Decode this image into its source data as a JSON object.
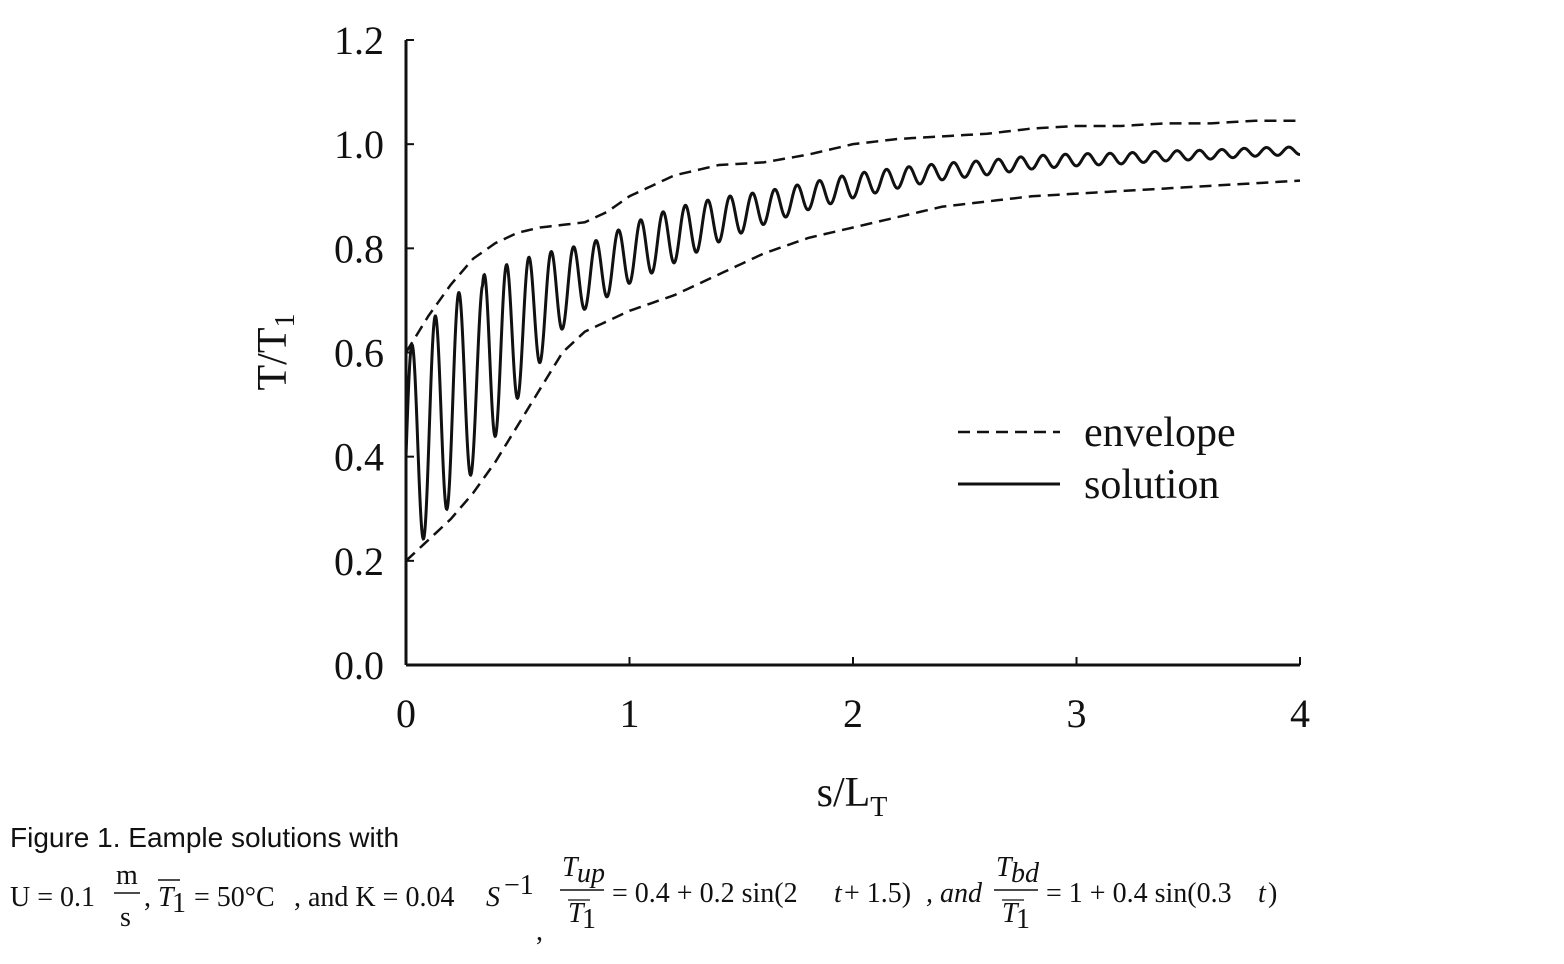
{
  "chart_data": {
    "type": "line",
    "xlabel": "s/L",
    "xlabel_sub": "T",
    "ylabel": "T/T",
    "ylabel_sub": "1",
    "xlim": [
      0,
      4
    ],
    "ylim": [
      0,
      1.2
    ],
    "xticks": [
      "0",
      "1",
      "2",
      "3",
      "4"
    ],
    "yticks": [
      "0.0",
      "0.2",
      "0.4",
      "0.6",
      "0.8",
      "1.0",
      "1.2"
    ],
    "grid": false,
    "legend_position": "right-middle",
    "series": [
      {
        "name": "envelope",
        "style": "dashed",
        "x": [
          0,
          0.1,
          0.2,
          0.3,
          0.4,
          0.5,
          0.6,
          0.7,
          0.8,
          0.9,
          1.0,
          1.2,
          1.4,
          1.6,
          1.8,
          2.0,
          2.2,
          2.4,
          2.6,
          2.8,
          3.0,
          3.2,
          3.4,
          3.6,
          3.8,
          4.0
        ],
        "y": [
          0.6,
          0.67,
          0.73,
          0.78,
          0.81,
          0.83,
          0.84,
          0.845,
          0.85,
          0.87,
          0.9,
          0.94,
          0.96,
          0.965,
          0.98,
          1.0,
          1.01,
          1.015,
          1.02,
          1.03,
          1.035,
          1.035,
          1.04,
          1.04,
          1.045,
          1.045
        ]
      },
      {
        "name": "envelope-lower",
        "style": "dashed",
        "x": [
          0,
          0.1,
          0.2,
          0.3,
          0.4,
          0.5,
          0.6,
          0.7,
          0.8,
          0.9,
          1.0,
          1.2,
          1.4,
          1.6,
          1.8,
          2.0,
          2.2,
          2.4,
          2.6,
          2.8,
          3.0,
          3.2,
          3.4,
          3.6,
          3.8,
          4.0
        ],
        "y": [
          0.2,
          0.24,
          0.28,
          0.33,
          0.39,
          0.46,
          0.53,
          0.6,
          0.64,
          0.66,
          0.68,
          0.71,
          0.75,
          0.79,
          0.82,
          0.84,
          0.86,
          0.88,
          0.89,
          0.9,
          0.905,
          0.91,
          0.915,
          0.92,
          0.925,
          0.93
        ]
      },
      {
        "name": "solution",
        "style": "solid",
        "x_start": 0,
        "x_end": 4,
        "period": 0.1,
        "start_value": 0.4
      }
    ]
  },
  "caption": {
    "line1": "Figure 1. Eample solutions with",
    "eq_u": "U = 0.1",
    "eq_m": "m",
    "eq_s": "s",
    "eq_t1_bar": "T",
    "eq_t1_sub": "1",
    "eq_eq50": "= 50°C",
    "eq_and_k": ", and K = 0.04",
    "eq_s_unit": "S",
    "eq_s_exp": "−1",
    "eq_comma": ",",
    "eq_tup": "T",
    "eq_tup_sub": "up",
    "eq_tup_den": "T",
    "eq_tup_den_sub": "1",
    "eq_expr1": "= 0.4 + 0.2 sin(2",
    "eq_t": "t",
    "eq_expr1_end": " + 1.5)",
    "eq_and": ", and",
    "eq_tbd": "T",
    "eq_tbd_sub": "bd",
    "eq_tbd_den": "T",
    "eq_tbd_den_sub": "1",
    "eq_expr2": "= 1 + 0.4 sin(0.3",
    "eq_expr2_end": ")"
  }
}
